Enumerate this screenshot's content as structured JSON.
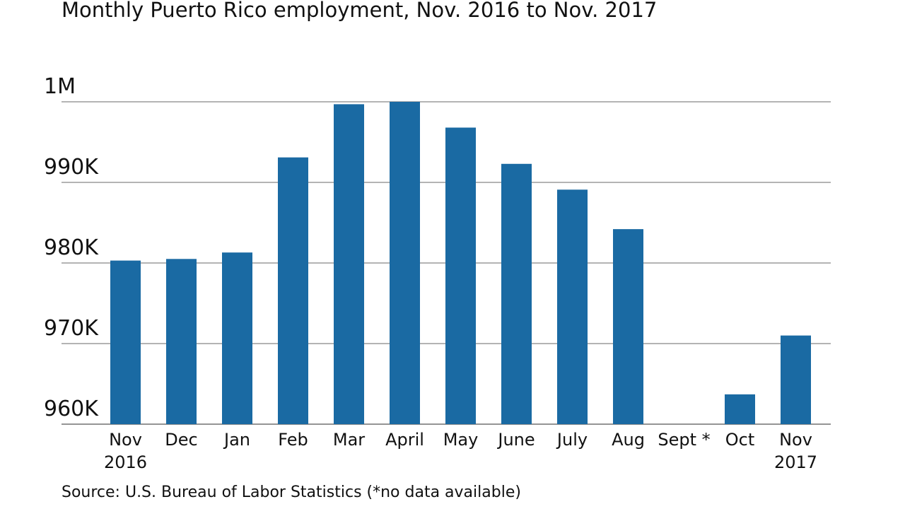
{
  "chart_data": {
    "type": "bar",
    "title": "Monthly Puerto Rico employment, Nov. 2016 to Nov. 2017",
    "source": "Source: U.S. Bureau of Labor Statistics (*no data available)",
    "categories": [
      "Nov\n2016",
      "Dec",
      "Jan",
      "Feb",
      "Mar",
      "April",
      "May",
      "June",
      "July",
      "Aug",
      "Sept *",
      "Oct",
      "Nov\n2017"
    ],
    "values": [
      980300,
      980500,
      981300,
      993100,
      999700,
      1000000,
      996800,
      992300,
      989100,
      984200,
      null,
      963700,
      971000
    ],
    "color": "#1a6aa3",
    "ylim": [
      960000,
      1000000
    ],
    "yticks": [
      {
        "value": 960000,
        "label": "960K"
      },
      {
        "value": 970000,
        "label": "970K"
      },
      {
        "value": 980000,
        "label": "980K"
      },
      {
        "value": 990000,
        "label": "990K"
      },
      {
        "value": 1000000,
        "label": "1M"
      }
    ],
    "grid": true
  }
}
